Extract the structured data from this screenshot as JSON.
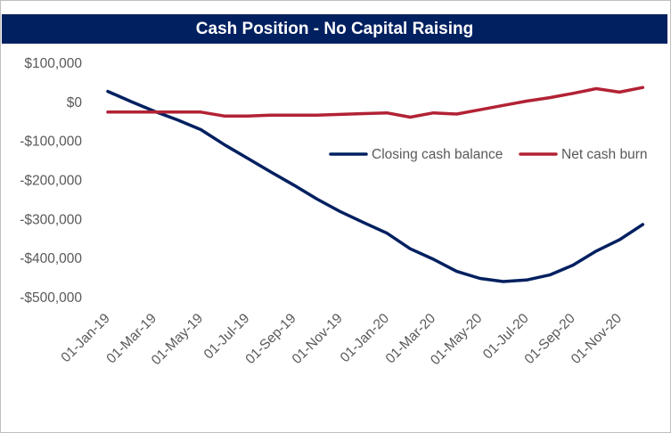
{
  "chart_data": {
    "type": "line",
    "title": "Cash Position - No Capital Raising",
    "xlabel": "",
    "ylabel": "",
    "ylim": [
      -500000,
      100000
    ],
    "y_ticks": [
      100000,
      0,
      -100000,
      -200000,
      -300000,
      -400000,
      -500000
    ],
    "y_tick_labels": [
      "$100,000",
      "$0",
      "-$100,000",
      "-$200,000",
      "-$300,000",
      "-$400,000",
      "-$500,000"
    ],
    "x": [
      "01-Jan-19",
      "01-Feb-19",
      "01-Mar-19",
      "01-Apr-19",
      "01-May-19",
      "01-Jun-19",
      "01-Jul-19",
      "01-Aug-19",
      "01-Sep-19",
      "01-Oct-19",
      "01-Nov-19",
      "01-Dec-19",
      "01-Jan-20",
      "01-Feb-20",
      "01-Mar-20",
      "01-Apr-20",
      "01-May-20",
      "01-Jun-20",
      "01-Jul-20",
      "01-Aug-20",
      "01-Sep-20",
      "01-Oct-20",
      "01-Nov-20",
      "01-Dec-20"
    ],
    "x_tick_labels": [
      "01-Jan-19",
      "01-Mar-19",
      "01-May-19",
      "01-Jul-19",
      "01-Sep-19",
      "01-Nov-19",
      "01-Jan-20",
      "01-Mar-20",
      "01-May-20",
      "01-Jul-20",
      "01-Sep-20",
      "01-Nov-20"
    ],
    "grid": false,
    "legend_position": "right",
    "series": [
      {
        "name": "Closing cash balance",
        "color": "#002060",
        "values": [
          28000,
          2000,
          -23000,
          -45000,
          -70000,
          -108000,
          -143000,
          -178000,
          -212000,
          -248000,
          -280000,
          -308000,
          -335000,
          -375000,
          -402000,
          -433000,
          -451000,
          -459000,
          -455000,
          -442000,
          -417000,
          -381000,
          -352000,
          -313000
        ]
      },
      {
        "name": "Net cash burn",
        "color": "#b22234",
        "values": [
          -25000,
          -25000,
          -25000,
          -25000,
          -25000,
          -35000,
          -35000,
          -33000,
          -33000,
          -33000,
          -31000,
          -29000,
          -27000,
          -38000,
          -27000,
          -30000,
          -19000,
          -8000,
          3000,
          12000,
          23000,
          35000,
          26000,
          38000
        ]
      }
    ]
  }
}
